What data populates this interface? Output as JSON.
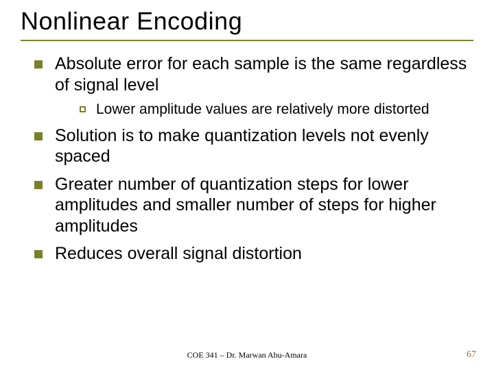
{
  "colors": {
    "olive": "#7a8028",
    "black": "#000000",
    "page_num": "#9a6b3a"
  },
  "title": "Nonlinear Encoding",
  "bullets": {
    "b1": "Absolute error for each sample is the same regardless of signal level",
    "b1_1": "Lower amplitude values are relatively more distorted",
    "b2": "Solution is to make quantization levels not evenly spaced",
    "b3": "Greater number of quantization steps for lower amplitudes and smaller number of steps for higher amplitudes",
    "b4": "Reduces overall signal distortion"
  },
  "footer": {
    "center": "COE 341 – Dr. Marwan Abu-Amara",
    "page": "67"
  }
}
